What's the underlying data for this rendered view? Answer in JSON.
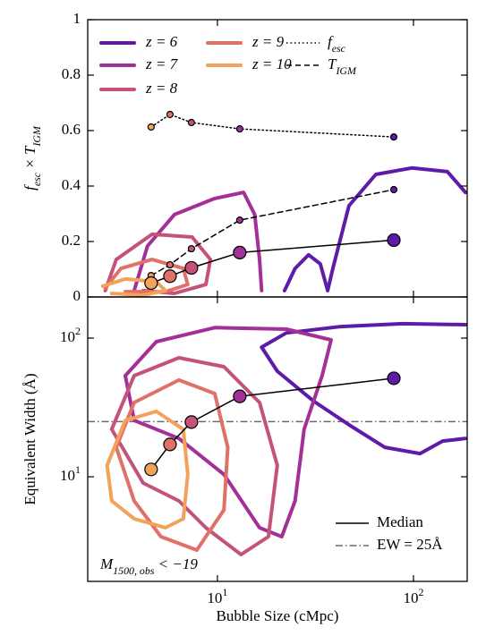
{
  "chart_data": [
    {
      "type": "line",
      "ylabel": "f_{esc} × T_{IGM}",
      "xscale": "log",
      "xlim": [
        2.18,
        188
      ],
      "ylim": [
        0,
        1
      ],
      "yticks": [
        0,
        0.2,
        0.4,
        0.6,
        0.8,
        1
      ],
      "series": [
        {
          "name": "z = 6",
          "color": "#5e1aa8",
          "style": "contour",
          "x": [
            22.0,
            24.9,
            29.2,
            33.5,
            36.5,
            38.8,
            46.9,
            64.3,
            98,
            149,
            184
          ],
          "values": [
            0.023,
            0.103,
            0.152,
            0.119,
            0.023,
            0.103,
            0.329,
            0.442,
            0.465,
            0.452,
            0.377
          ]
        },
        {
          "name": "z = 7",
          "color": "#a33096",
          "style": "contour",
          "x": [
            3.76,
            4.4,
            6.04,
            9.69,
            13.6,
            15.5,
            16.4,
            16.8
          ],
          "values": [
            0.023,
            0.184,
            0.297,
            0.355,
            0.377,
            0.297,
            0.135,
            0.023
          ]
        },
        {
          "name": "z = 8",
          "color": "#c4527a",
          "style": "contour",
          "x": [
            2.68,
            3.05,
            4.64,
            7.43,
            9.21,
            8.73,
            6.04,
            4.18
          ],
          "values": [
            0.023,
            0.135,
            0.226,
            0.216,
            0.135,
            0.045,
            0.013,
            0.023
          ]
        },
        {
          "name": "z = 9",
          "color": "#e07168",
          "style": "contour",
          "x": [
            2.68,
            3.22,
            4.64,
            6.7,
            7.06,
            5.43,
            3.39
          ],
          "values": [
            0.032,
            0.103,
            0.135,
            0.103,
            0.045,
            0.019,
            0.019
          ]
        },
        {
          "name": "z = 10",
          "color": "#f2a25a",
          "style": "contour",
          "x": [
            2.6,
            3.39,
            4.88,
            5.43,
            4.18,
            2.89
          ],
          "values": [
            0.039,
            0.065,
            0.055,
            0.023,
            0.006,
            0.013
          ]
        },
        {
          "name": "f_{esc}",
          "color": "#000000",
          "style": "dotted",
          "marker": "small",
          "marker_colors": [
            "#f2a25a",
            "#e07168",
            "#c4527a",
            "#a33096",
            "#5e1aa8"
          ],
          "x": [
            4.59,
            5.73,
            7.37,
            13.0,
            79.4
          ],
          "values": [
            0.613,
            0.658,
            0.629,
            0.606,
            0.577
          ]
        },
        {
          "name": "T_{IGM}",
          "color": "#000000",
          "style": "dashed",
          "marker": "small",
          "marker_colors": [
            "#f2a25a",
            "#e07168",
            "#c4527a",
            "#a33096",
            "#5e1aa8"
          ],
          "x": [
            4.59,
            5.73,
            7.37,
            13.0,
            79.4
          ],
          "values": [
            0.077,
            0.116,
            0.174,
            0.277,
            0.387
          ]
        },
        {
          "color": "#000000",
          "style": "solid",
          "marker": "large",
          "marker_colors": [
            "#f2a25a",
            "#e07168",
            "#c4527a",
            "#a33096",
            "#5e1aa8"
          ],
          "x": [
            4.59,
            5.73,
            7.37,
            13.0,
            79.4
          ],
          "values": [
            0.05,
            0.075,
            0.105,
            0.16,
            0.205
          ]
        }
      ]
    },
    {
      "type": "line",
      "xlabel": "Bubble Size (cMpc)",
      "ylabel": "Equivalent Width (Å)",
      "xscale": "log",
      "yscale": "log",
      "xlim": [
        2.18,
        188
      ],
      "ylim": [
        1.76,
        198
      ],
      "xticks": [
        {
          "value": 10,
          "label": "10^{1}"
        },
        {
          "value": 100,
          "label": "10^{2}"
        }
      ],
      "yticks": [
        {
          "value": 10,
          "label": "10^{1}"
        },
        {
          "value": 100,
          "label": "10^{2}"
        }
      ],
      "series": [
        {
          "color": "#5e1aa8",
          "style": "contour",
          "x": [
            184,
            88.1,
            42.2,
            22.5,
            16.8,
            20.2,
            30.8,
            46.9,
            71.4,
            108,
            141,
            184
          ],
          "values": [
            125,
            127,
            121,
            109,
            86.1,
            57.7,
            35.3,
            23.7,
            16.3,
            14.7,
            18.1,
            18.9
          ]
        },
        {
          "color": "#a33096",
          "style": "contour",
          "x": [
            3.39,
            4.88,
            9.69,
            22.5,
            38.0,
            34.2,
            27.7,
            24.9,
            21.3,
            16.4,
            10.8,
            6.36,
            3.76,
            3.39
          ],
          "values": [
            53.6,
            94.2,
            119,
            116,
            97.1,
            53.6,
            22.0,
            6.7,
            3.7,
            4.29,
            10.4,
            18.9,
            25.5,
            53.6
          ]
        },
        {
          "color": "#c4527a",
          "style": "contour",
          "x": [
            2.89,
            3.76,
            6.36,
            10.8,
            16.4,
            20.2,
            18.2,
            13.2,
            8.73,
            6.36,
            4.18,
            2.89
          ],
          "values": [
            22.0,
            53.6,
            72.1,
            62.2,
            34.3,
            12.1,
            3.7,
            2.75,
            4.29,
            6.7,
            9.02,
            22.0
          ]
        },
        {
          "color": "#e07168",
          "style": "contour",
          "x": [
            3.05,
            3.76,
            6.36,
            9.69,
            11.3,
            10.8,
            7.85,
            5.15,
            3.76,
            3.05
          ],
          "values": [
            16.3,
            34.3,
            49.8,
            39.8,
            16.3,
            5.77,
            2.96,
            3.7,
            6.7,
            16.3
          ]
        },
        {
          "color": "#f2a25a",
          "style": "contour",
          "x": [
            2.74,
            3.39,
            4.88,
            6.7,
            7.06,
            6.7,
            5.43,
            3.76,
            2.89,
            2.74
          ],
          "values": [
            12.1,
            25.5,
            29.6,
            22.0,
            10.4,
            4.98,
            4.29,
            4.98,
            6.7,
            12.1
          ]
        },
        {
          "name": "Median",
          "color": "#000000",
          "style": "solid",
          "marker": "large",
          "marker_colors": [
            "#f2a25a",
            "#e07168",
            "#c4527a",
            "#a33096",
            "#5e1aa8"
          ],
          "x": [
            4.59,
            5.73,
            7.37,
            13.0,
            79.4
          ],
          "values": [
            11.3,
            17.1,
            24.8,
            38,
            51.3
          ]
        }
      ],
      "hlines": [
        {
          "value": 25,
          "label": "EW = 25Å",
          "style": "dashdot",
          "color": "#6a6a6a"
        }
      ],
      "annotation": "M_{1500, obs} < −19"
    }
  ]
}
